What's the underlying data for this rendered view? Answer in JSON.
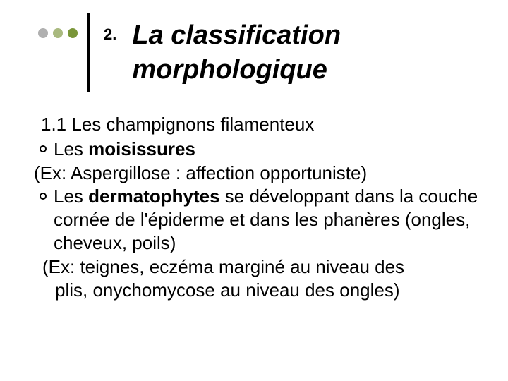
{
  "colors": {
    "dot1": "#b0b0b0",
    "dot2": "#a9b97f",
    "dot3": "#7a9639",
    "divider": "#000000",
    "text": "#000000",
    "background": "#ffffff"
  },
  "title": {
    "number": "2.",
    "line1": "La classification",
    "line2": "morphologique",
    "fontsize": 38,
    "italic": true,
    "bold": true
  },
  "body": {
    "fontsize": 26,
    "subheading": "1.1 Les champignons filamenteux",
    "bullets": [
      {
        "prefix": "Les ",
        "bold": "moisissures",
        "rest": ""
      },
      {
        "prefix": "Les ",
        "bold": "dermatophytes",
        "rest": " se développant dans la couche cornée de l'épiderme et dans les phanères (ongles, cheveux, poils)"
      }
    ],
    "example1": "(Ex: Aspergillose : affection opportuniste)",
    "example2a": "(Ex:  teignes, eczéma marginé au niveau des",
    "example2b": "plis, onychomycose au niveau des ongles)"
  }
}
